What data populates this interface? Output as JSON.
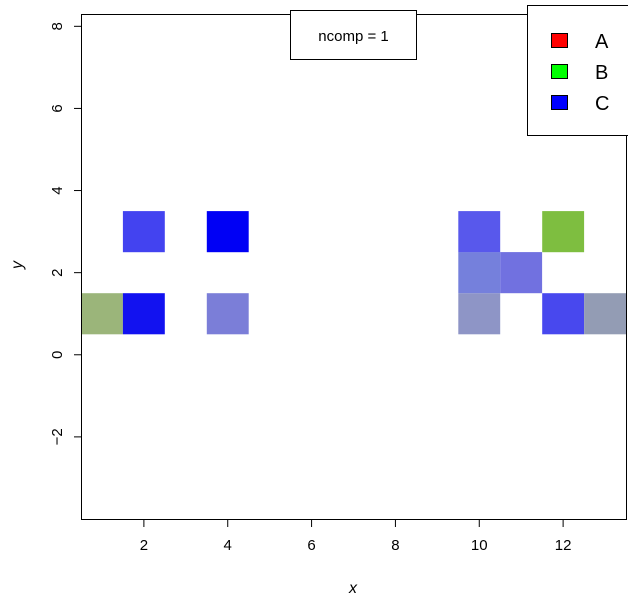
{
  "chart_data": {
    "type": "heatmap",
    "xlabel": "x",
    "ylabel": "y",
    "xlim": [
      0.5,
      13.5
    ],
    "ylim": [
      -4,
      8.3
    ],
    "x_ticks": [
      2,
      4,
      6,
      8,
      10,
      12
    ],
    "y_ticks": [
      -2,
      0,
      2,
      4,
      6,
      8
    ],
    "annotation": "ncomp = 1",
    "legend": {
      "placement": "top-right",
      "entries": [
        {
          "label": "A",
          "color": "#ff0000"
        },
        {
          "label": "B",
          "color": "#00ff00"
        },
        {
          "label": "C",
          "color": "#0000ff"
        }
      ]
    },
    "cells": [
      {
        "x": 1,
        "y": 1,
        "color": "#9bb57a"
      },
      {
        "x": 2,
        "y": 1,
        "color": "#1212f0"
      },
      {
        "x": 2,
        "y": 3,
        "color": "#4343f0"
      },
      {
        "x": 4,
        "y": 1,
        "color": "#7b7ed8"
      },
      {
        "x": 4,
        "y": 3,
        "color": "#0000f5"
      },
      {
        "x": 10,
        "y": 1,
        "color": "#8e95c6"
      },
      {
        "x": 10,
        "y": 2,
        "color": "#7580dc"
      },
      {
        "x": 10,
        "y": 3,
        "color": "#5858ec"
      },
      {
        "x": 11,
        "y": 2,
        "color": "#7171e0"
      },
      {
        "x": 12,
        "y": 1,
        "color": "#4848ee"
      },
      {
        "x": 12,
        "y": 3,
        "color": "#7ebe40"
      },
      {
        "x": 13,
        "y": 1,
        "color": "#939cb4"
      }
    ]
  }
}
